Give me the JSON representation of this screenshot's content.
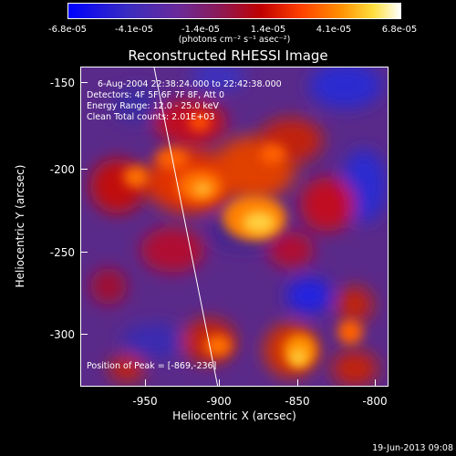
{
  "colorbar": {
    "ticks": [
      "-6.8e-05",
      "-4.1e-05",
      "-1.4e-05",
      "1.4e-05",
      "4.1e-05",
      "6.8e-05"
    ],
    "units": "(photons cm⁻² s⁻¹ asec⁻²)",
    "colors": [
      "#0000ff",
      "#6a2a9a",
      "#c00000",
      "#ff9000",
      "#ffffff"
    ]
  },
  "title": "Reconstructed RHESSI Image",
  "annotations": {
    "time_range": "6-Aug-2004 22:38:24.000 to 22:42:38.000",
    "detectors": "Detectors: 4F 5F 6F 7F 8F, Att 0",
    "energy": "Energy Range: 12.0 - 25.0 keV",
    "clean": "Clean    Total counts: 2.01E+03",
    "peak": "Position of Peak = [-869,-236]"
  },
  "axes": {
    "xlabel": "Heliocentric X (arcsec)",
    "ylabel": "Heliocentric Y (arcsec)",
    "xticks": [
      "-950",
      "-900",
      "-850",
      "-800"
    ],
    "yticks": [
      "-150",
      "-200",
      "-250",
      "-300"
    ]
  },
  "timestamp": "19-Jun-2013 09:08"
}
